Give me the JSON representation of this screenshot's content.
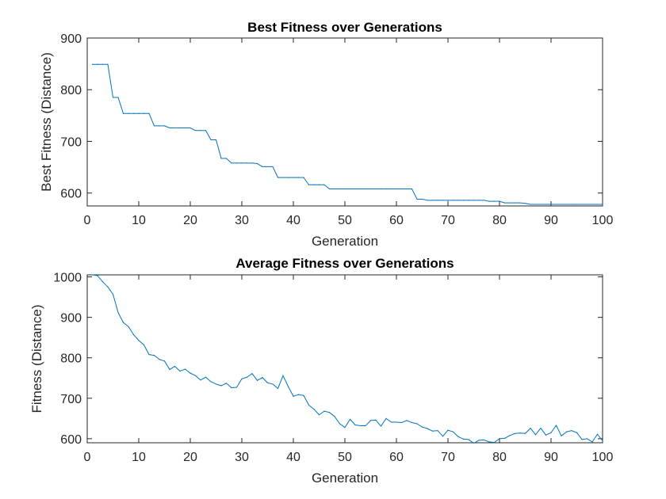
{
  "chart_data": [
    {
      "type": "line",
      "title": "Best Fitness over Generations",
      "xlabel": "Generation",
      "ylabel": "Best Fitness (Distance)",
      "xlim": [
        0,
        100
      ],
      "ylim": [
        575,
        900
      ],
      "xticks": [
        0,
        10,
        20,
        30,
        40,
        50,
        60,
        70,
        80,
        90,
        100
      ],
      "yticks": [
        600,
        700,
        800,
        900
      ],
      "grid": false,
      "color": "#0072BD",
      "x": [
        1,
        2,
        3,
        4,
        5,
        6,
        7,
        8,
        9,
        10,
        11,
        12,
        13,
        14,
        15,
        16,
        17,
        18,
        19,
        20,
        21,
        22,
        23,
        24,
        25,
        26,
        27,
        28,
        29,
        30,
        31,
        32,
        33,
        34,
        35,
        36,
        37,
        38,
        39,
        40,
        41,
        42,
        43,
        44,
        45,
        46,
        47,
        48,
        49,
        50,
        51,
        52,
        53,
        54,
        55,
        56,
        57,
        58,
        59,
        60,
        61,
        62,
        63,
        64,
        65,
        66,
        67,
        68,
        69,
        70,
        71,
        72,
        73,
        74,
        75,
        76,
        77,
        78,
        79,
        80,
        81,
        82,
        83,
        84,
        85,
        86,
        87,
        88,
        89,
        90,
        91,
        92,
        93,
        94,
        95,
        96,
        97,
        98,
        99,
        100
      ],
      "values": [
        849,
        849,
        849,
        849,
        785,
        785,
        754,
        754,
        754,
        754,
        754,
        754,
        730,
        730,
        730,
        726,
        726,
        726,
        726,
        726,
        721,
        721,
        721,
        703,
        703,
        667,
        667,
        658,
        658,
        658,
        658,
        658,
        657,
        651,
        651,
        651,
        630,
        630,
        630,
        630,
        630,
        630,
        616,
        616,
        616,
        616,
        608,
        608,
        608,
        608,
        608,
        608,
        608,
        608,
        608,
        608,
        608,
        608,
        608,
        608,
        608,
        608,
        608,
        588,
        588,
        586,
        586,
        586,
        586,
        586,
        586,
        586,
        586,
        586,
        586,
        586,
        586,
        584,
        584,
        584,
        581,
        581,
        581,
        581,
        580,
        578,
        578,
        578,
        578,
        578,
        578,
        578,
        578,
        578,
        578,
        578,
        578,
        578,
        578,
        578
      ]
    },
    {
      "type": "line",
      "title": "Average Fitness over Generations",
      "xlabel": "Generation",
      "ylabel": "Fitness (Distance)",
      "xlim": [
        0,
        100
      ],
      "ylim": [
        590,
        1005
      ],
      "xticks": [
        0,
        10,
        20,
        30,
        40,
        50,
        60,
        70,
        80,
        90,
        100
      ],
      "yticks": [
        600,
        700,
        800,
        900,
        1000
      ],
      "ytick_labels": [
        "600",
        "700",
        "800",
        "900",
        "1000"
      ],
      "grid": false,
      "color": "#0072BD",
      "x": [
        1,
        2,
        3,
        4,
        5,
        6,
        7,
        8,
        9,
        10,
        11,
        12,
        13,
        14,
        15,
        16,
        17,
        18,
        19,
        20,
        21,
        22,
        23,
        24,
        25,
        26,
        27,
        28,
        29,
        30,
        31,
        32,
        33,
        34,
        35,
        36,
        37,
        38,
        39,
        40,
        41,
        42,
        43,
        44,
        45,
        46,
        47,
        48,
        49,
        50,
        51,
        52,
        53,
        54,
        55,
        56,
        57,
        58,
        59,
        60,
        61,
        62,
        63,
        64,
        65,
        66,
        67,
        68,
        69,
        70,
        71,
        72,
        73,
        74,
        75,
        76,
        77,
        78,
        79,
        80,
        81,
        82,
        83,
        84,
        85,
        86,
        87,
        88,
        89,
        90,
        91,
        92,
        93,
        94,
        95,
        96,
        97,
        98,
        99,
        100
      ],
      "values": [
        1005,
        1003,
        988,
        975,
        957,
        912,
        887,
        877,
        857,
        843,
        832,
        808,
        806,
        796,
        792,
        771,
        779,
        767,
        772,
        762,
        756,
        745,
        752,
        741,
        735,
        731,
        737,
        726,
        727,
        748,
        752,
        761,
        744,
        751,
        738,
        735,
        724,
        756,
        729,
        705,
        709,
        707,
        683,
        673,
        659,
        668,
        665,
        655,
        637,
        628,
        648,
        634,
        632,
        632,
        645,
        646,
        631,
        650,
        641,
        641,
        640,
        645,
        640,
        637,
        629,
        625,
        619,
        620,
        606,
        621,
        617,
        605,
        599,
        598,
        589,
        596,
        597,
        592,
        591,
        600,
        601,
        608,
        613,
        614,
        613,
        626,
        610,
        626,
        609,
        615,
        633,
        607,
        617,
        620,
        615,
        598,
        600,
        592,
        611,
        595
      ]
    }
  ]
}
